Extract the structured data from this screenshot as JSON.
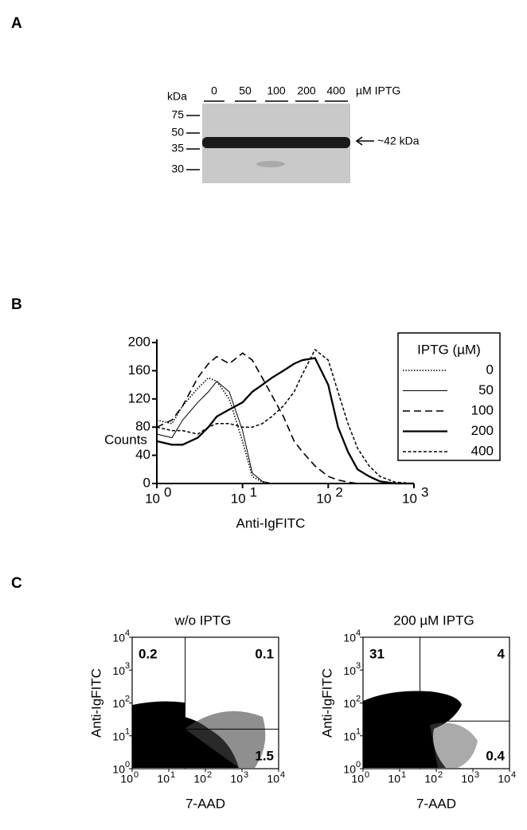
{
  "panel_labels": [
    "A",
    "B",
    "C"
  ],
  "blot": {
    "unit": "kDa",
    "lanes": [
      "0",
      "50",
      "100",
      "200",
      "400"
    ],
    "lane_unit": "µM IPTG",
    "markers": [
      "75",
      "50",
      "35",
      "30"
    ],
    "band_label": "~42 kDa"
  },
  "chart_data": [
    {
      "type": "line",
      "xlabel": "Anti-IgFITC",
      "ylabel": "Counts",
      "x": [
        1,
        1.5,
        2,
        3,
        4,
        5,
        7,
        10,
        13,
        17,
        22,
        30,
        40,
        50,
        70,
        100,
        130,
        170,
        220,
        300,
        400,
        600,
        1000
      ],
      "xlim": [
        1,
        1000
      ],
      "log_x": true,
      "xticks": [
        {
          "value": 1,
          "label": "10",
          "exponent": "0"
        },
        {
          "value": 10,
          "label": "10",
          "exponent": "1"
        },
        {
          "value": 100,
          "label": "10",
          "exponent": "2"
        },
        {
          "value": 1000,
          "label": "10",
          "exponent": "3"
        }
      ],
      "ylim": [
        0,
        200
      ],
      "yticks": [
        0,
        40,
        80,
        120,
        160,
        200
      ],
      "legend": {
        "title": "IPTG (µM)",
        "position": "right"
      },
      "series": [
        {
          "name": "0",
          "color": "#000000",
          "style": "dotted",
          "values": [
            90,
            85,
            110,
            135,
            150,
            145,
            120,
            60,
            10,
            2,
            0,
            0,
            0,
            0,
            0,
            0,
            0,
            0,
            0,
            0,
            0,
            0,
            0
          ]
        },
        {
          "name": "50",
          "color": "#000000",
          "style": "thin",
          "values": [
            70,
            65,
            90,
            115,
            130,
            145,
            130,
            75,
            15,
            3,
            0,
            0,
            0,
            0,
            0,
            0,
            0,
            0,
            0,
            0,
            0,
            0,
            0
          ]
        },
        {
          "name": "100",
          "color": "#000000",
          "style": "long-dash",
          "values": [
            80,
            90,
            110,
            150,
            170,
            180,
            170,
            185,
            175,
            150,
            125,
            95,
            60,
            45,
            25,
            10,
            5,
            2,
            0,
            0,
            0,
            0,
            0
          ]
        },
        {
          "name": "200",
          "color": "#000000",
          "style": "thick",
          "values": [
            60,
            55,
            55,
            65,
            80,
            95,
            105,
            115,
            130,
            140,
            150,
            160,
            170,
            175,
            178,
            140,
            80,
            45,
            20,
            10,
            3,
            0,
            0
          ]
        },
        {
          "name": "400",
          "color": "#000000",
          "style": "short-dash",
          "values": [
            80,
            75,
            75,
            70,
            80,
            85,
            85,
            80,
            80,
            85,
            95,
            110,
            130,
            155,
            190,
            175,
            130,
            85,
            50,
            25,
            10,
            2,
            0
          ]
        }
      ]
    },
    {
      "type": "quadrant-scatter",
      "title": "w/o IPTG",
      "xlabel": "7-AAD",
      "ylabel": "Anti-IgFITC",
      "xlim": [
        1,
        10000
      ],
      "ylim": [
        1,
        10000
      ],
      "log_x": true,
      "log_y": true,
      "xticks": [
        {
          "value": 1,
          "label": "10",
          "exponent": "0"
        },
        {
          "value": 10,
          "label": "10",
          "exponent": "1"
        },
        {
          "value": 100,
          "label": "10",
          "exponent": "2"
        },
        {
          "value": 1000,
          "label": "10",
          "exponent": "3"
        },
        {
          "value": 10000,
          "label": "10",
          "exponent": "4"
        }
      ],
      "yticks": [
        {
          "value": 1,
          "label": "10",
          "exponent": "0"
        },
        {
          "value": 10,
          "label": "10",
          "exponent": "1"
        },
        {
          "value": 100,
          "label": "10",
          "exponent": "2"
        },
        {
          "value": 1000,
          "label": "10",
          "exponent": "3"
        },
        {
          "value": 10000,
          "label": "10",
          "exponent": "4"
        }
      ],
      "gate": {
        "x": 28,
        "y": 16
      },
      "quadrants": {
        "upper_left": 0.2,
        "upper_right": 0.1,
        "lower_right": 1.5
      }
    },
    {
      "type": "quadrant-scatter",
      "title": "200 µM IPTG",
      "xlabel": "7-AAD",
      "ylabel": "Anti-IgFITC",
      "xlim": [
        1,
        10000
      ],
      "ylim": [
        1,
        10000
      ],
      "log_x": true,
      "log_y": true,
      "xticks": [
        {
          "value": 1,
          "label": "10",
          "exponent": "0"
        },
        {
          "value": 10,
          "label": "10",
          "exponent": "1"
        },
        {
          "value": 100,
          "label": "10",
          "exponent": "2"
        },
        {
          "value": 1000,
          "label": "10",
          "exponent": "3"
        },
        {
          "value": 10000,
          "label": "10",
          "exponent": "4"
        }
      ],
      "yticks": [
        {
          "value": 1,
          "label": "10",
          "exponent": "0"
        },
        {
          "value": 10,
          "label": "10",
          "exponent": "1"
        },
        {
          "value": 100,
          "label": "10",
          "exponent": "2"
        },
        {
          "value": 1000,
          "label": "10",
          "exponent": "3"
        },
        {
          "value": 10000,
          "label": "10",
          "exponent": "4"
        }
      ],
      "gate": {
        "x": 36,
        "y": 28
      },
      "quadrants": {
        "upper_left": 31,
        "upper_right": 4,
        "lower_right": 0.4
      }
    }
  ]
}
